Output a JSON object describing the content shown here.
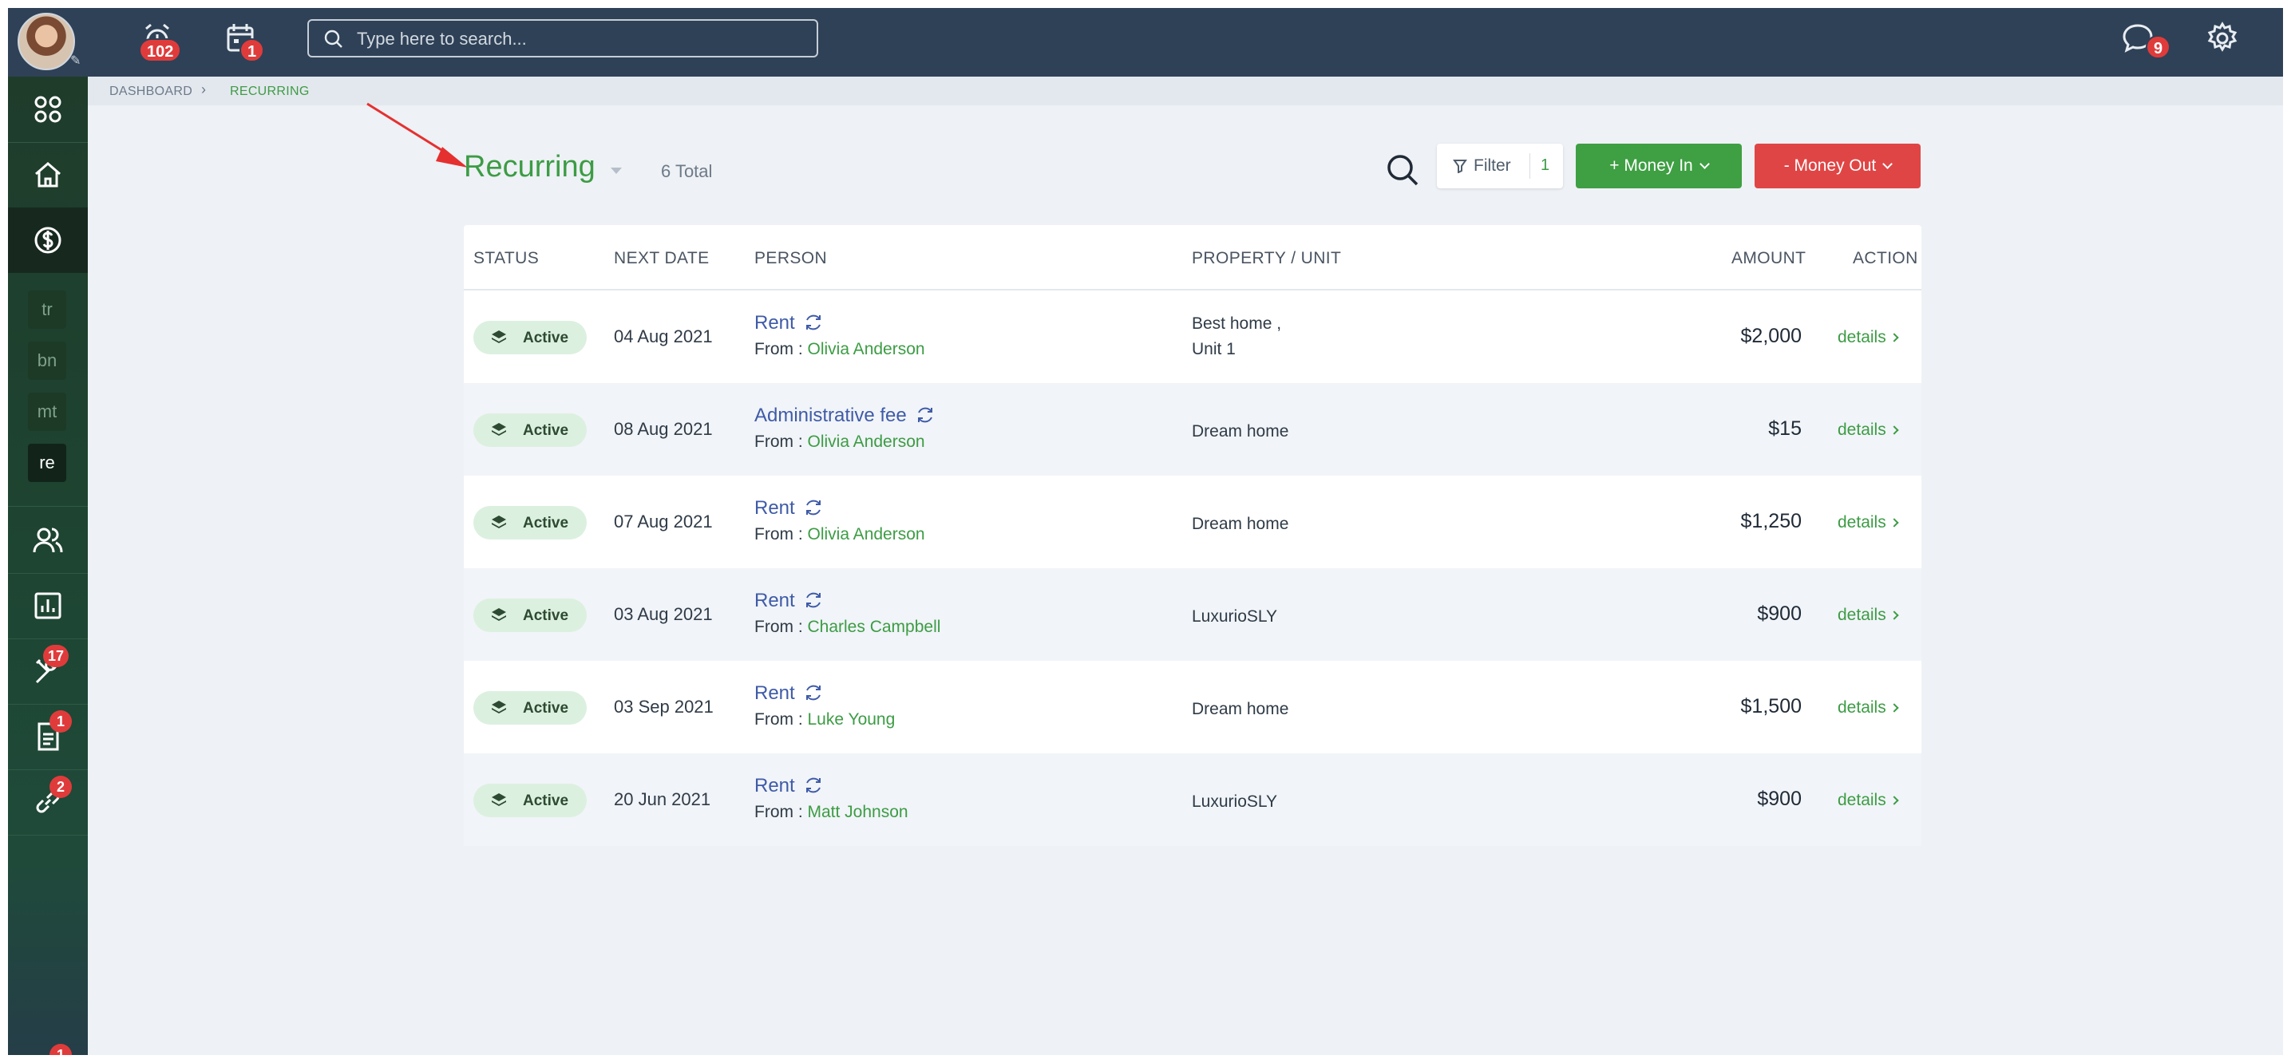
{
  "topbar": {
    "search_placeholder": "Type here to search...",
    "alarm_badge": "102",
    "calendar_badge": "1",
    "messages_badge": "9"
  },
  "sidebar": {
    "mini_items": [
      "tr",
      "bn",
      "mt",
      "re"
    ],
    "tools_badge": "17",
    "documents_badge": "1",
    "links_badge": "2",
    "bottom_badge": "1"
  },
  "breadcrumb": {
    "root": "DASHBOARD",
    "separator": "›",
    "current": "RECURRING"
  },
  "header": {
    "title": "Recurring",
    "total": "6 Total",
    "filter_label": "Filter",
    "filter_count": "1",
    "money_in_label": "+ Money In",
    "money_out_label": "- Money Out"
  },
  "table": {
    "columns": [
      "STATUS",
      "NEXT DATE",
      "PERSON",
      "PROPERTY / UNIT",
      "AMOUNT",
      "ACTION"
    ],
    "from_prefix": "From : ",
    "action_label": "details",
    "rows": [
      {
        "status": "Active",
        "date": "04 Aug 2021",
        "type": "Rent",
        "person": "Olivia Anderson",
        "property_line1": "Best home ,",
        "property_line2": "Unit 1",
        "amount": "$2,000"
      },
      {
        "status": "Active",
        "date": "08 Aug 2021",
        "type": "Administrative fee",
        "person": "Olivia Anderson",
        "property_line1": "Dream home",
        "property_line2": "",
        "amount": "$15"
      },
      {
        "status": "Active",
        "date": "07 Aug 2021",
        "type": "Rent",
        "person": "Olivia Anderson",
        "property_line1": "Dream home",
        "property_line2": "",
        "amount": "$1,250"
      },
      {
        "status": "Active",
        "date": "03 Aug 2021",
        "type": "Rent",
        "person": "Charles Campbell",
        "property_line1": "LuxurioSLY",
        "property_line2": "",
        "amount": "$900"
      },
      {
        "status": "Active",
        "date": "03 Sep 2021",
        "type": "Rent",
        "person": "Luke Young",
        "property_line1": "Dream home",
        "property_line2": "",
        "amount": "$1,500"
      },
      {
        "status": "Active",
        "date": "20 Jun 2021",
        "type": "Rent",
        "person": "Matt Johnson",
        "property_line1": "LuxurioSLY",
        "property_line2": "",
        "amount": "$900"
      }
    ]
  },
  "colors": {
    "topbar": "#2f4157",
    "accent_green": "#3c9c44",
    "money_out_red": "#e04545",
    "link_blue": "#3f5ba8",
    "badge_red": "#e03b3b"
  }
}
